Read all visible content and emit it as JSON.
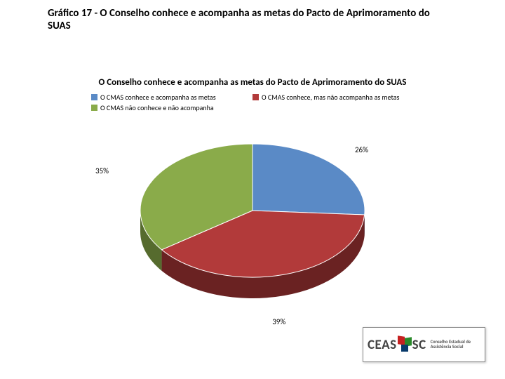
{
  "page": {
    "title": "Gráfico 17 - O Conselho conhece e acompanha as metas do Pacto de Aprimoramento do SUAS"
  },
  "chart": {
    "type": "pie",
    "title": "O Conselho conhece e acompanha as metas do Pacto de Aprimoramento do SUAS",
    "background_color": "#ffffff",
    "label_fontsize": 11,
    "legend_fontsize": 10,
    "title_fontsize": 13,
    "slices": [
      {
        "label": "O CMAS conhece e acompanha as metas",
        "value": 26,
        "display": "26%",
        "color_top": "#5a8ac6",
        "color_side": "#2e4a6b"
      },
      {
        "label": "O CMAS conhece, mas não acompanha as metas",
        "value": 39,
        "display": "39%",
        "color_top": "#b23a3a",
        "color_side": "#6a2222"
      },
      {
        "label": "O CMAS não conhece e não acompanha",
        "value": 35,
        "display": "35%",
        "color_top": "#8aab4a",
        "color_side": "#566b2e"
      }
    ]
  },
  "logo": {
    "text_main": "CEAS SC",
    "text_sub": "Conselho Estadual de Assistência Social"
  }
}
